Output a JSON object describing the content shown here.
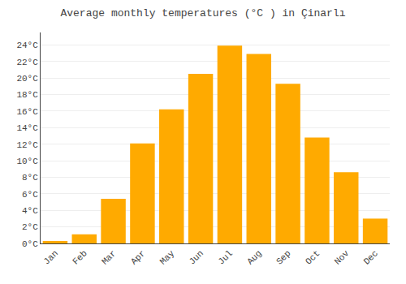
{
  "chart_data": {
    "type": "bar",
    "title": "Average monthly temperatures (°C ) in Çinarlı",
    "categories": [
      "Jan",
      "Feb",
      "Mar",
      "Apr",
      "May",
      "Jun",
      "Jul",
      "Aug",
      "Sep",
      "Oct",
      "Nov",
      "Dec"
    ],
    "values": [
      0.3,
      1.1,
      5.4,
      12.1,
      16.2,
      20.5,
      23.9,
      22.9,
      19.3,
      12.8,
      8.6,
      3.0
    ],
    "color": "#FFAA00",
    "ylim": [
      0,
      25.5
    ],
    "yticks": [
      {
        "value": 0,
        "label": "0°C"
      },
      {
        "value": 2,
        "label": "2°C"
      },
      {
        "value": 4,
        "label": "4°C"
      },
      {
        "value": 6,
        "label": "6°C"
      },
      {
        "value": 8,
        "label": "8°C"
      },
      {
        "value": 10,
        "label": "10°C"
      },
      {
        "value": 12,
        "label": "12°C"
      },
      {
        "value": 14,
        "label": "14°C"
      },
      {
        "value": 16,
        "label": "16°C"
      },
      {
        "value": 18,
        "label": "18°C"
      },
      {
        "value": 20,
        "label": "20°C"
      },
      {
        "value": 22,
        "label": "22°C"
      },
      {
        "value": 24,
        "label": "24°C"
      }
    ],
    "grid": true
  }
}
